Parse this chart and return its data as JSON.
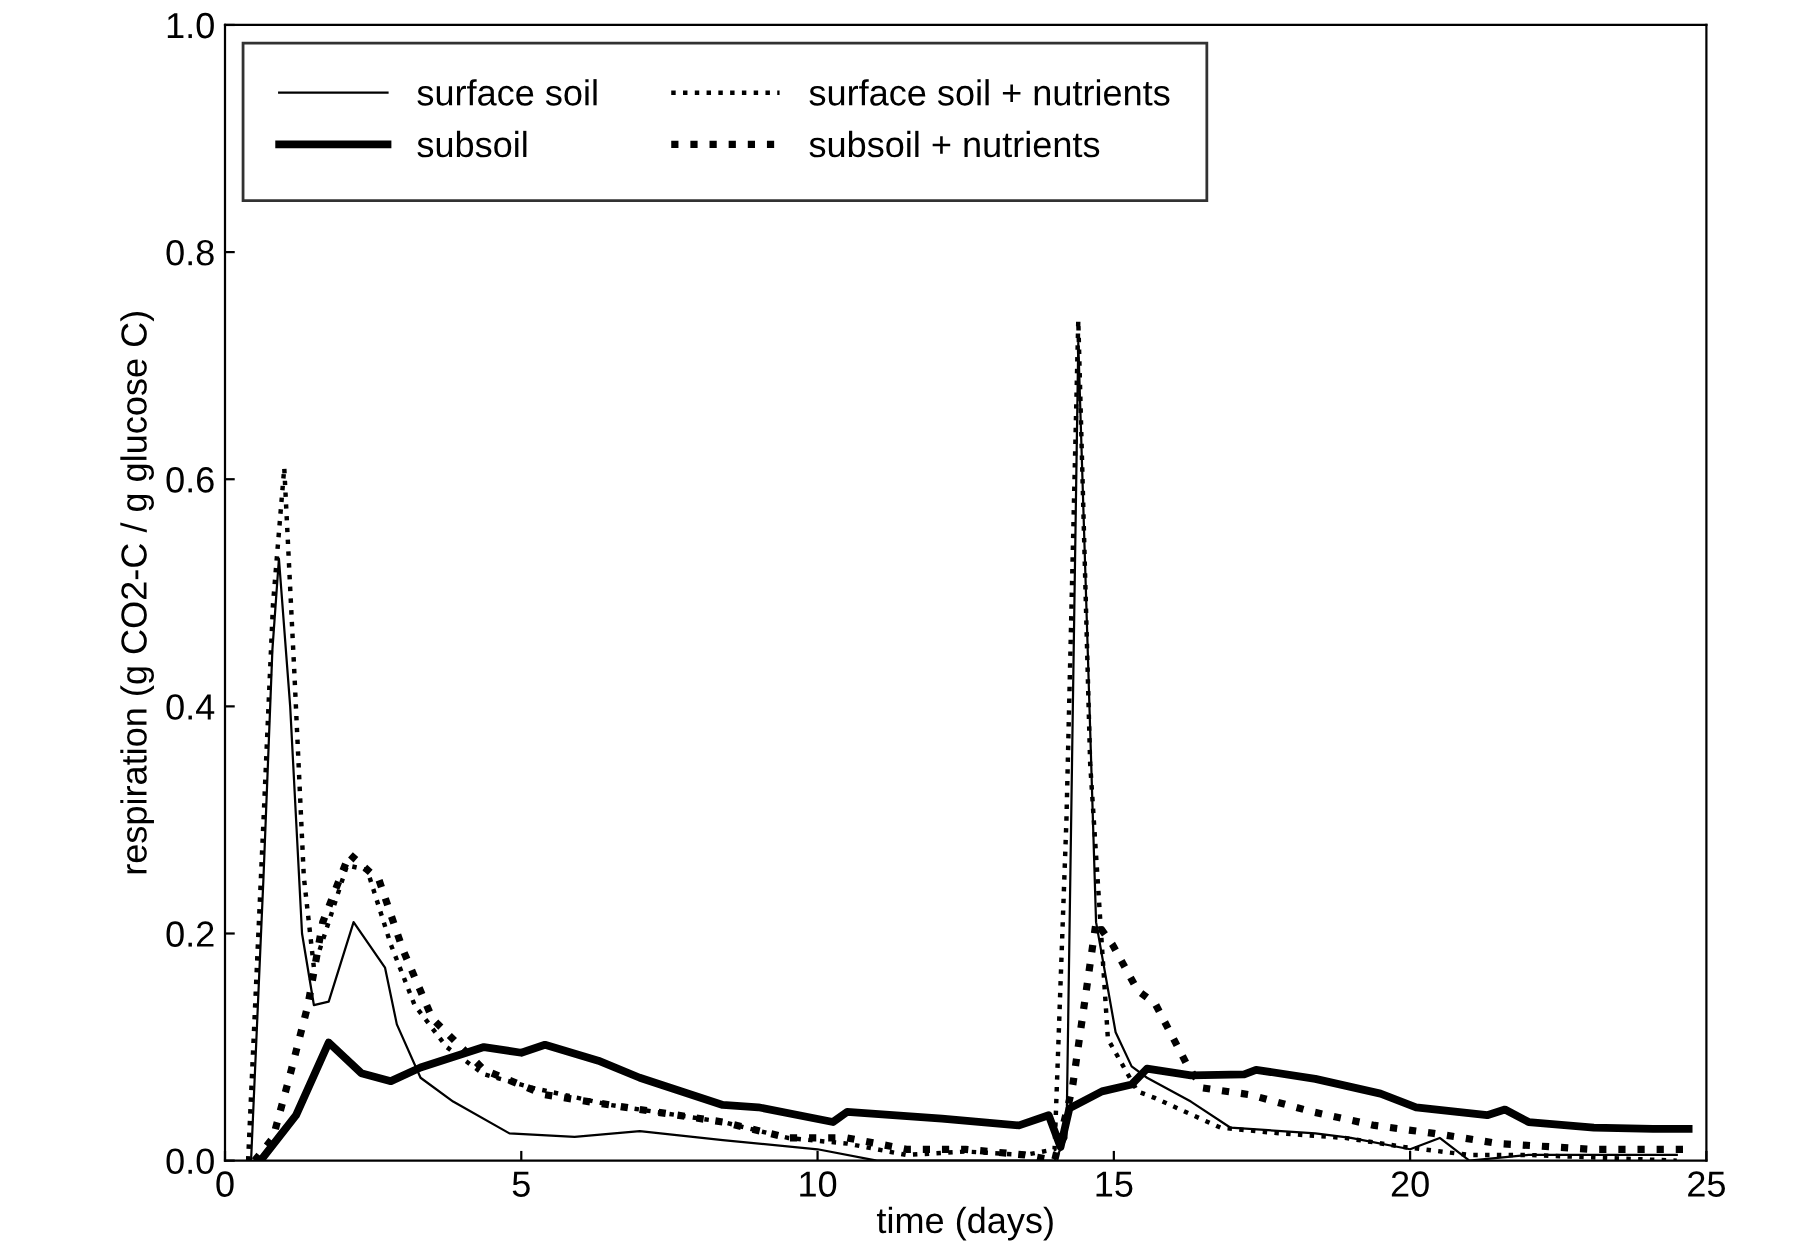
{
  "chart_data": {
    "type": "line",
    "xlabel": "time (days)",
    "ylabel": "respiration (g CO2-C / g glucose C)",
    "xlim": [
      0,
      25
    ],
    "xticks": [
      0,
      5,
      10,
      15,
      20,
      25
    ],
    "ylim": [
      0,
      1
    ],
    "yticks": [
      {
        "value": 0,
        "label": "0.0"
      },
      {
        "value": 0.2,
        "label": "0.2"
      },
      {
        "value": 0.4,
        "label": "0.4"
      },
      {
        "value": 0.6,
        "label": "0.6"
      },
      {
        "value": 0.8,
        "label": "0.8"
      },
      {
        "value": 1,
        "label": "1.0"
      }
    ],
    "legend": "top left",
    "grid": false,
    "series": [
      {
        "name": "surface soil",
        "color": "#000000",
        "line_style": "solid",
        "x": [
          0.44,
          0.65,
          0.8,
          0.91,
          1.1,
          1.3,
          1.5,
          1.75,
          2.17,
          2.7,
          2.9,
          3.3,
          3.85,
          4.8,
          5.9,
          7.0,
          8.4,
          10.0,
          11.0,
          12.0,
          14.0,
          14.2,
          14.4,
          14.7,
          15.03,
          15.3,
          15.56,
          16.3,
          16.97,
          18.4,
          19.0,
          20.0,
          20.5,
          21.0,
          22.0,
          24.5
        ],
        "values": [
          0,
          0.25,
          0.45,
          0.53,
          0.4,
          0.2,
          0.137,
          0.14,
          0.21,
          0.17,
          0.12,
          0.073,
          0.052,
          0.024,
          0.021,
          0.026,
          0.018,
          0.01,
          0,
          0,
          0,
          0.02,
          0.72,
          0.21,
          0.113,
          0.083,
          0.073,
          0.052,
          0.029,
          0.024,
          0.02,
          0.01,
          0.02,
          0,
          0.005,
          0.005
        ]
      },
      {
        "name": "surface soil + nutrients",
        "color": "#000000",
        "line_style": "dotted",
        "x": [
          0.39,
          0.65,
          0.81,
          1.0,
          1.17,
          1.33,
          1.5,
          1.75,
          2.06,
          2.4,
          2.8,
          3.2,
          3.74,
          4.37,
          5.2,
          6.5,
          8.4,
          9.5,
          10.5,
          11.5,
          12.5,
          13.5,
          14.0,
          14.2,
          14.4,
          14.6,
          14.9,
          15.4,
          15.7,
          16.8,
          17.8,
          18.9,
          19.9,
          21.0,
          22.0,
          23.0,
          24.5
        ],
        "values": [
          0,
          0.3,
          0.49,
          0.61,
          0.43,
          0.25,
          0.17,
          0.21,
          0.26,
          0.256,
          0.19,
          0.137,
          0.1,
          0.076,
          0.064,
          0.049,
          0.034,
          0.02,
          0.015,
          0.005,
          0.008,
          0.005,
          0.01,
          0.3,
          0.74,
          0.35,
          0.107,
          0.061,
          0.055,
          0.029,
          0.024,
          0.02,
          0.012,
          0.005,
          0.005,
          0.003,
          0
        ]
      },
      {
        "name": "subsoil",
        "color": "#000000",
        "line_style": "solid",
        "x": [
          0.6,
          1.2,
          1.75,
          2.3,
          2.8,
          3.3,
          4.37,
          5.0,
          5.4,
          6.3,
          7.0,
          8.4,
          9.0,
          10.26,
          10.5,
          12.1,
          13.4,
          13.9,
          14.1,
          14.25,
          14.8,
          15.3,
          15.56,
          16.3,
          17.2,
          17.4,
          18.4,
          19.5,
          20.1,
          21.3,
          21.6,
          22.0,
          23.1,
          24.1,
          24.7
        ],
        "values": [
          0,
          0.04,
          0.104,
          0.077,
          0.07,
          0.082,
          0.1,
          0.095,
          0.102,
          0.088,
          0.073,
          0.049,
          0.047,
          0.034,
          0.043,
          0.037,
          0.031,
          0.04,
          0.012,
          0.046,
          0.061,
          0.067,
          0.081,
          0.075,
          0.076,
          0.08,
          0.072,
          0.059,
          0.047,
          0.04,
          0.045,
          0.034,
          0.029,
          0.028,
          0.028
        ]
      },
      {
        "name": "subsoil + nutrients",
        "color": "#000000",
        "line_style": "dotted",
        "x": [
          0.5,
          0.81,
          1.1,
          1.4,
          1.65,
          2.1,
          2.6,
          3.0,
          3.5,
          4.37,
          5.4,
          6.5,
          8.4,
          9.5,
          10.5,
          11.5,
          12.5,
          13.5,
          14.0,
          14.3,
          14.5,
          14.7,
          14.98,
          15.4,
          15.7,
          16.25,
          16.5,
          17.3,
          18.35,
          19.4,
          20.4,
          21.5,
          23.05,
          24.1,
          24.7
        ],
        "values": [
          0,
          0.02,
          0.076,
          0.137,
          0.21,
          0.27,
          0.247,
          0.186,
          0.125,
          0.08,
          0.058,
          0.049,
          0.034,
          0.02,
          0.02,
          0.01,
          0.01,
          0.005,
          0,
          0.064,
          0.137,
          0.21,
          0.19,
          0.15,
          0.138,
          0.083,
          0.064,
          0.058,
          0.043,
          0.031,
          0.024,
          0.015,
          0.01,
          0.01,
          0.01
        ]
      }
    ]
  }
}
